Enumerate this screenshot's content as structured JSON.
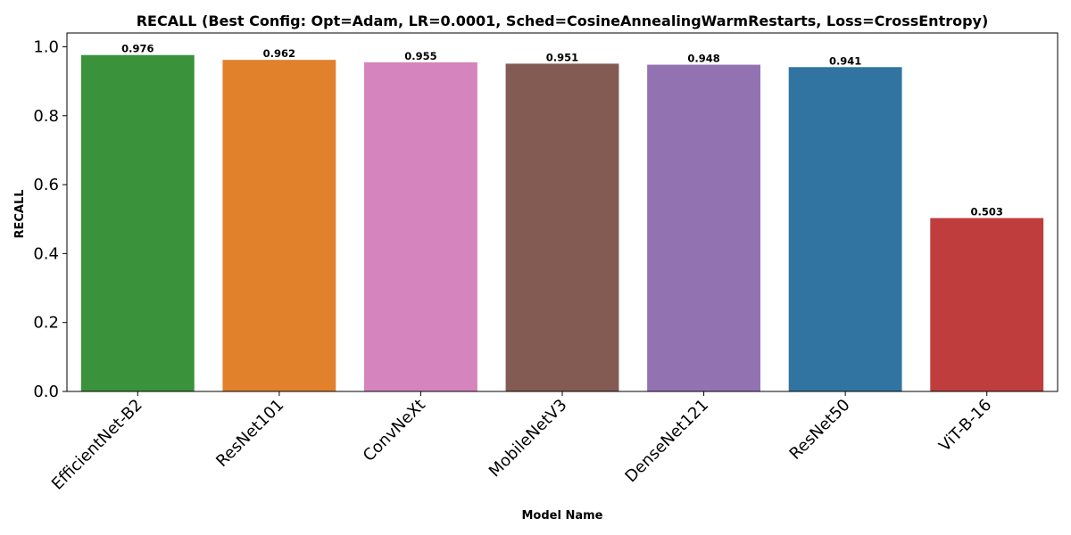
{
  "chart_data": {
    "type": "bar",
    "title": "RECALL (Best Config: Opt=Adam, LR=0.0001, Sched=CosineAnnealingWarmRestarts, Loss=CrossEntropy)",
    "xlabel": "Model Name",
    "ylabel": "RECALL",
    "categories": [
      "EfficientNet-B2",
      "ResNet101",
      "ConvNeXt",
      "MobileNetV3",
      "DenseNet121",
      "ResNet50",
      "ViT-B-16"
    ],
    "values": [
      0.976,
      0.962,
      0.955,
      0.951,
      0.948,
      0.941,
      0.503
    ],
    "data_labels": [
      "0.976",
      "0.962",
      "0.955",
      "0.951",
      "0.948",
      "0.941",
      "0.503"
    ],
    "colors": [
      "#3a923a",
      "#e1812c",
      "#d684bd",
      "#845b53",
      "#9372b2",
      "#3274a1",
      "#c03d3e"
    ],
    "ylim": [
      0,
      1.04
    ],
    "yticks": [
      0.0,
      0.2,
      0.4,
      0.6,
      0.8,
      1.0
    ],
    "ytick_labels": [
      "0.0",
      "0.2",
      "0.4",
      "0.6",
      "0.8",
      "1.0"
    ],
    "grid": false,
    "legend": "none"
  }
}
